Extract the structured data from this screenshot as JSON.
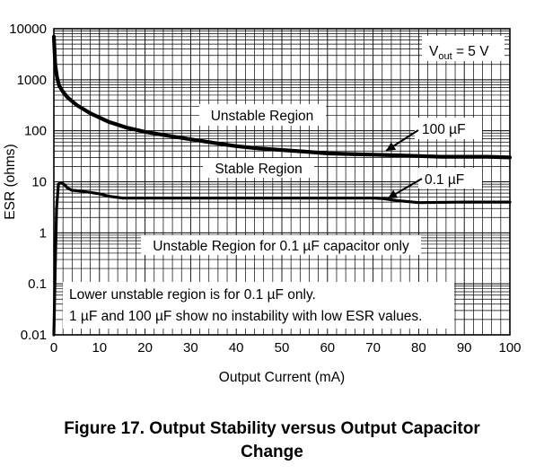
{
  "chart_data": {
    "type": "line",
    "xlabel": "Output Current (mA)",
    "ylabel": "ESR (ohms)",
    "yscale": "log",
    "xlim": [
      0,
      100
    ],
    "ylim": [
      0.01,
      10000
    ],
    "x_ticks": [
      "0",
      "10",
      "20",
      "30",
      "40",
      "50",
      "60",
      "70",
      "80",
      "90",
      "100"
    ],
    "y_ticks": [
      "0.01",
      "0.1",
      "1",
      "10",
      "100",
      "1000",
      "10000"
    ],
    "legend_box": {
      "text_main": "V",
      "text_sub": "out",
      "text_tail": " = 5 V"
    },
    "annotations": [
      {
        "id": "unstable_upper",
        "text": "Unstable Region"
      },
      {
        "id": "stable",
        "text": "Stable Region"
      },
      {
        "id": "unstable_lower",
        "text": "Unstable Region for 0.1 µF capacitor only"
      },
      {
        "id": "label_100uF",
        "text": "100 µF"
      },
      {
        "id": "label_01uF",
        "text": "0.1 µF"
      },
      {
        "id": "note_line1",
        "text": "Lower unstable region is for 0.1 µF only."
      },
      {
        "id": "note_line2",
        "text": "1 µF and 100 µF show no instability with low ESR values."
      }
    ],
    "series": [
      {
        "name": "100 µF",
        "x": [
          0,
          0.3,
          0.7,
          1.2,
          2,
          3,
          5,
          8,
          12,
          16,
          20,
          25,
          30,
          35,
          40,
          45,
          50,
          55,
          60,
          65,
          70,
          75,
          80,
          85,
          90,
          95,
          100
        ],
        "y": [
          7000,
          2000,
          1100,
          750,
          580,
          450,
          320,
          220,
          150,
          115,
          95,
          80,
          68,
          58,
          50,
          45,
          42,
          39,
          36,
          35,
          34,
          33,
          32,
          31,
          31,
          31,
          30
        ]
      },
      {
        "name": "0.1 µF",
        "x": [
          0,
          0.3,
          0.6,
          1,
          1.5,
          2,
          2.5,
          3,
          4,
          5,
          6,
          8,
          10,
          12,
          15,
          20,
          30,
          40,
          50,
          60,
          70,
          72,
          75,
          80,
          90,
          100
        ],
        "y": [
          0.01,
          0.2,
          3,
          9,
          9.5,
          9.2,
          8.5,
          7.5,
          6.8,
          6.7,
          6.5,
          6.2,
          5.8,
          5.2,
          4.8,
          4.8,
          4.8,
          4.8,
          4.8,
          4.8,
          4.8,
          4.7,
          4.3,
          3.9,
          4.0,
          4.0
        ]
      }
    ]
  },
  "caption": {
    "line1": "Figure 17. Output Stability versus Output Capacitor",
    "line2": "Change"
  }
}
